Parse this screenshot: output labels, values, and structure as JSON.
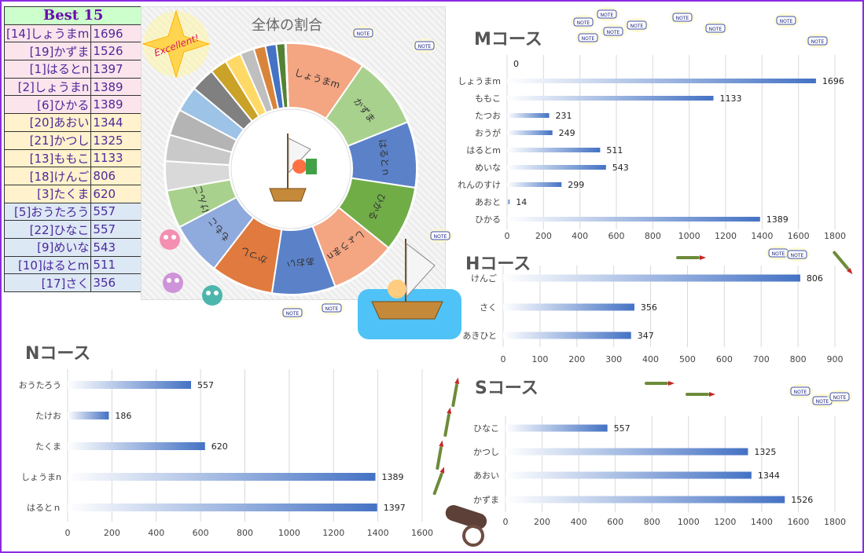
{
  "colors": {
    "bar_dark": "#4472c4",
    "bar_light": "#ffffff",
    "border": "#8a2be2",
    "best_header_bg": "#ccffcc",
    "best_text": "#4b2a9a"
  },
  "best": {
    "title": "Best 15",
    "rows": [
      {
        "name": "[14]しょうまm",
        "score": "1696",
        "bg": "#fce4ec"
      },
      {
        "name": "[19]かずま",
        "score": "1526",
        "bg": "#fce4ec"
      },
      {
        "name": "[1]はるとn",
        "score": "1397",
        "bg": "#fce4ec"
      },
      {
        "name": "[2]しょうまn",
        "score": "1389",
        "bg": "#fce4ec"
      },
      {
        "name": "[6]ひかる",
        "score": "1389",
        "bg": "#fce4ec"
      },
      {
        "name": "[20]あおい",
        "score": "1344",
        "bg": "#fff2cc"
      },
      {
        "name": "[21]かつし",
        "score": "1325",
        "bg": "#fff2cc"
      },
      {
        "name": "[13]ももこ",
        "score": "1133",
        "bg": "#fff2cc"
      },
      {
        "name": "[18]けんご",
        "score": "806",
        "bg": "#fff2cc"
      },
      {
        "name": "[3]たくま",
        "score": "620",
        "bg": "#fff2cc"
      },
      {
        "name": "[5]おうたろう",
        "score": "557",
        "bg": "#dde8f5"
      },
      {
        "name": "[22]ひなこ",
        "score": "557",
        "bg": "#dde8f5"
      },
      {
        "name": "[9]めいな",
        "score": "543",
        "bg": "#dde8f5"
      },
      {
        "name": "[10]はるとm",
        "score": "511",
        "bg": "#dde8f5"
      },
      {
        "name": "[17]さく",
        "score": "356",
        "bg": "#dde8f5"
      }
    ]
  },
  "badge": {
    "text": "Excellent!"
  },
  "note_label": "NOTE",
  "chart_data": [
    {
      "type": "pie",
      "title": "全体の割合",
      "labels": [
        "しょうまm",
        "かずま",
        "はるとｎ",
        "ひかる",
        "しょうまn",
        "あおい",
        "かつし",
        "ももこ",
        "けんご",
        "",
        "",
        "",
        "",
        "",
        "",
        "",
        "",
        "",
        "",
        "",
        "",
        ""
      ],
      "values": [
        1696,
        1526,
        1397,
        1389,
        1389,
        1344,
        1325,
        1133,
        806,
        620,
        557,
        557,
        543,
        511,
        356,
        347,
        299,
        249,
        231,
        186,
        14,
        1
      ],
      "colors": [
        "#f4a582",
        "#a9d18e",
        "#5b82c9",
        "#70ad47",
        "#f4a582",
        "#5b82c9",
        "#e07a3e",
        "#8faadc",
        "#a9d18e",
        "#d9d9d9",
        "#c9c9c9",
        "#b4b4b4",
        "#9dc3e6",
        "#808080",
        "#c9a227",
        "#ffd966",
        "#bfbfbf",
        "#d9843b",
        "#4472c4",
        "#548235",
        "#2f75b5",
        "#ffc000"
      ]
    },
    {
      "type": "bar",
      "title": "Mコース",
      "categories": [
        "",
        "しょうまm",
        "ももこ",
        "たつお",
        "おうが",
        "はるとm",
        "めいな",
        "れんのすけ",
        "あおと",
        "ひかる"
      ],
      "values": [
        0,
        1696,
        1133,
        231,
        249,
        511,
        543,
        299,
        14,
        1389
      ],
      "value_labels": [
        "0",
        "1696",
        "1133",
        "231",
        "249",
        "511",
        "543",
        "299",
        "14",
        "1389"
      ],
      "xlim": [
        0,
        1800
      ],
      "ticks": [
        0,
        200,
        400,
        600,
        800,
        1000,
        1200,
        1400,
        1600,
        1800
      ]
    },
    {
      "type": "bar",
      "title": "Hコース",
      "categories": [
        "けんご",
        "さく",
        "あきひと"
      ],
      "values": [
        806,
        356,
        347
      ],
      "xlim": [
        0,
        900
      ],
      "ticks": [
        0,
        100,
        200,
        300,
        400,
        500,
        600,
        700,
        800,
        900
      ]
    },
    {
      "type": "bar",
      "title": "Nコース",
      "categories": [
        "おうたろう",
        "たけお",
        "たくま",
        "しょうまn",
        "はるとｎ"
      ],
      "values": [
        557,
        186,
        620,
        1389,
        1397
      ],
      "xlim": [
        0,
        1600
      ],
      "ticks": [
        0,
        200,
        400,
        600,
        800,
        1000,
        1200,
        1400,
        1600
      ]
    },
    {
      "type": "bar",
      "title": "Sコース",
      "categories": [
        "ひなこ",
        "かつし",
        "あおい",
        "かずま"
      ],
      "values": [
        557,
        1325,
        1344,
        1526
      ],
      "xlim": [
        0,
        1800
      ],
      "ticks": [
        0,
        200,
        400,
        600,
        800,
        1000,
        1200,
        1400,
        1600,
        1800
      ]
    }
  ]
}
